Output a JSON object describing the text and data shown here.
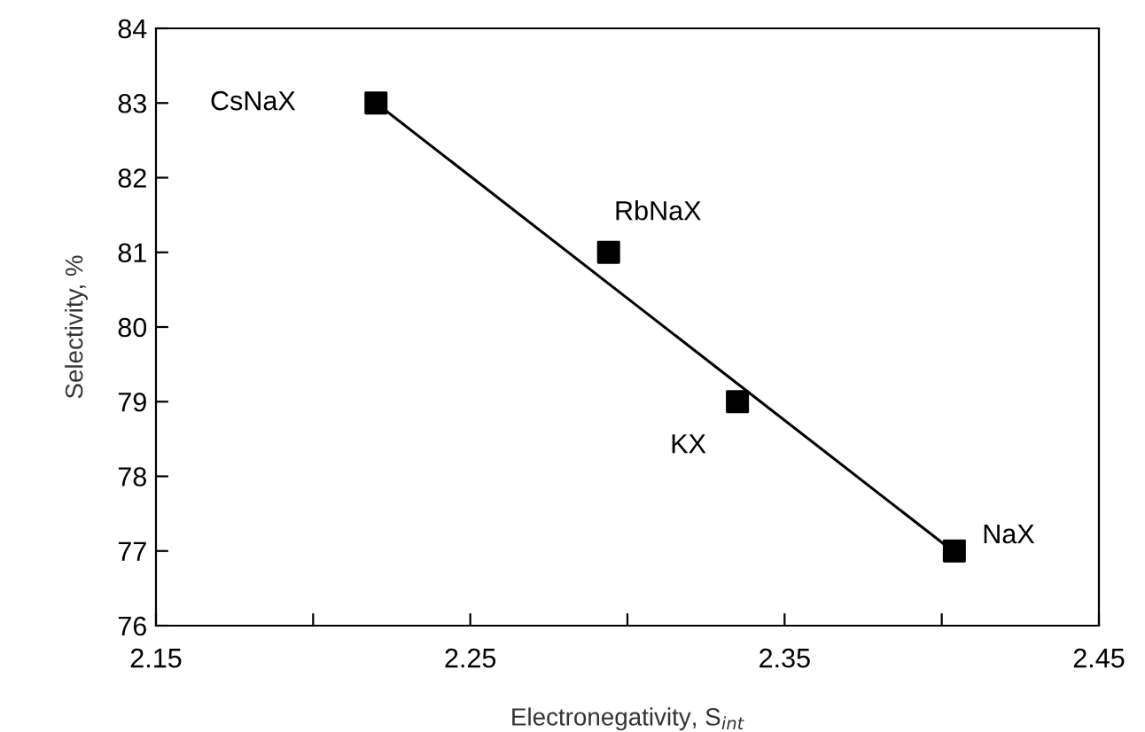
{
  "chart_data": {
    "type": "scatter",
    "xlabel": "Electronegativity, S$_{int}$",
    "ylabel": "Selectivity, %",
    "xlim": [
      2.15,
      2.45
    ],
    "ylim": [
      76,
      84
    ],
    "xticks": [
      2.15,
      {
        "value": 2.2,
        "label": null
      },
      2.25,
      {
        "value": 2.3,
        "label": null
      },
      2.35,
      {
        "value": 2.4,
        "label": null
      },
      2.45
    ],
    "yticks": [
      76,
      77,
      78,
      79,
      80,
      81,
      82,
      83,
      84
    ],
    "grid": false,
    "legend": false,
    "series": [
      {
        "color": "#000000",
        "marker": "square",
        "x": [
          2.22,
          2.294,
          2.335,
          2.404
        ],
        "values": [
          83,
          81,
          79,
          77
        ]
      },
      {
        "type": "line",
        "color": "#000000",
        "marker": "none",
        "line_style": "solid",
        "x": [
          2.22,
          2.402
        ],
        "values": [
          83.0,
          77.05
        ]
      }
    ],
    "annotations": [
      {
        "text": "CsNaX",
        "x": 2.22,
        "y": 83
      },
      {
        "text": "RbNaX",
        "x": 2.294,
        "y": 81
      },
      {
        "text": "KX",
        "x": 2.335,
        "y": 79
      },
      {
        "text": "NaX",
        "x": 2.404,
        "y": 77
      }
    ]
  }
}
